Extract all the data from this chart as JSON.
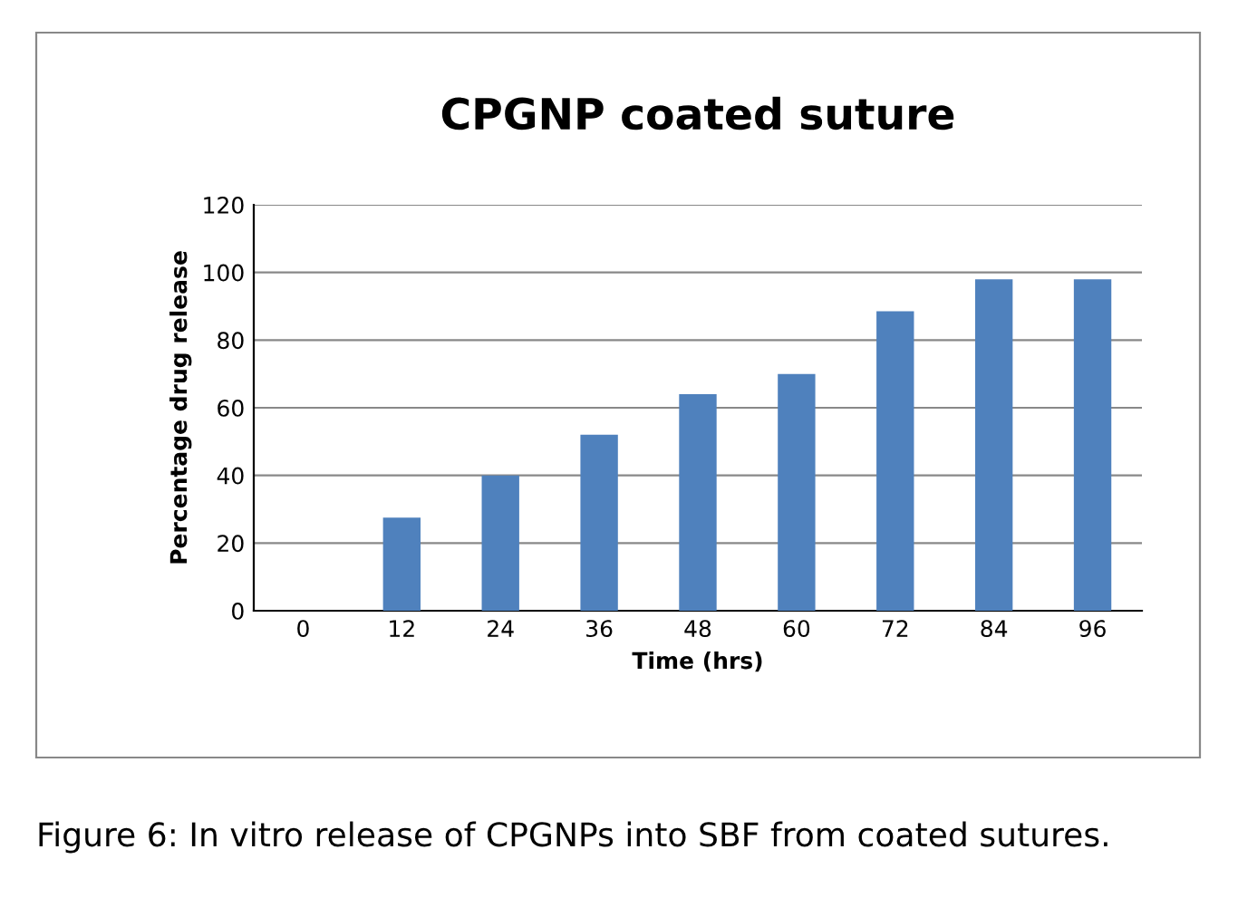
{
  "chart_data": {
    "type": "bar",
    "title": "CPGNP coated suture",
    "xlabel": "Time (hrs)",
    "ylabel": "Percentage drug release",
    "categories": [
      "0",
      "12",
      "24",
      "36",
      "48",
      "60",
      "72",
      "84",
      "96"
    ],
    "values": [
      0,
      27.5,
      40,
      52,
      64,
      70,
      88.5,
      98,
      98
    ],
    "color": "#4f81bd",
    "ylim": [
      0,
      120
    ],
    "yticks": [
      0,
      20,
      40,
      60,
      80,
      100,
      120
    ],
    "grid": "y",
    "annotations": [
      "Figure 6: In vitro release of CPGNPs into SBF from coated sutures."
    ]
  }
}
